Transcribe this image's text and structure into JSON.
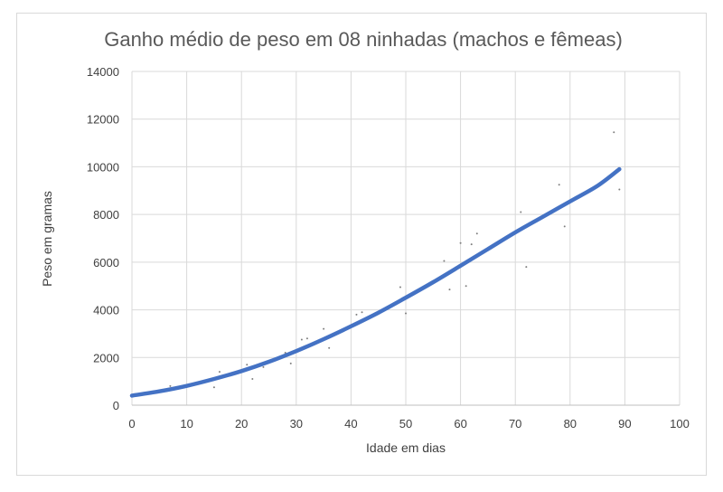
{
  "chart_data": {
    "type": "scatter",
    "title": "Ganho médio de peso em 08 ninhadas (machos e fêmeas)",
    "xlabel": "Idade em dias",
    "ylabel": "Peso em gramas",
    "xlim": [
      0,
      100
    ],
    "ylim": [
      0,
      14000
    ],
    "x_ticks": [
      0,
      10,
      20,
      30,
      40,
      50,
      60,
      70,
      80,
      90,
      100
    ],
    "y_ticks": [
      0,
      2000,
      4000,
      6000,
      8000,
      10000,
      12000,
      14000
    ],
    "x_tick_labels": [
      "0",
      "10",
      "20",
      "30",
      "40",
      "50",
      "60",
      "70",
      "80",
      "90",
      "100"
    ],
    "y_tick_labels": [
      "0",
      "2000",
      "4000",
      "6000",
      "8000",
      "10000",
      "12000",
      "14000"
    ],
    "grid": true,
    "legend": "none",
    "series": [
      {
        "style": "points",
        "color": "#7f7f7f",
        "x": [
          7,
          15,
          16,
          21,
          22,
          24,
          28,
          29,
          31,
          32,
          35,
          36,
          41,
          42,
          49,
          50,
          57,
          58,
          60,
          61,
          62,
          63,
          71,
          72,
          78,
          79,
          88,
          89
        ],
        "y": [
          800,
          750,
          1400,
          1700,
          1100,
          1600,
          2200,
          1750,
          2750,
          2800,
          3200,
          2400,
          3800,
          3900,
          4950,
          3850,
          6050,
          4850,
          6800,
          5000,
          6750,
          7200,
          8100,
          5800,
          9250,
          7500,
          11450,
          9050
        ]
      },
      {
        "style": "trendline",
        "color": "#4472c4",
        "x": [
          0,
          5,
          10,
          15,
          20,
          25,
          30,
          35,
          40,
          45,
          50,
          55,
          60,
          65,
          70,
          75,
          80,
          85,
          89
        ],
        "y": [
          400,
          580,
          810,
          1100,
          1430,
          1820,
          2270,
          2770,
          3310,
          3880,
          4510,
          5160,
          5850,
          6550,
          7250,
          7900,
          8550,
          9200,
          9900
        ]
      }
    ]
  }
}
